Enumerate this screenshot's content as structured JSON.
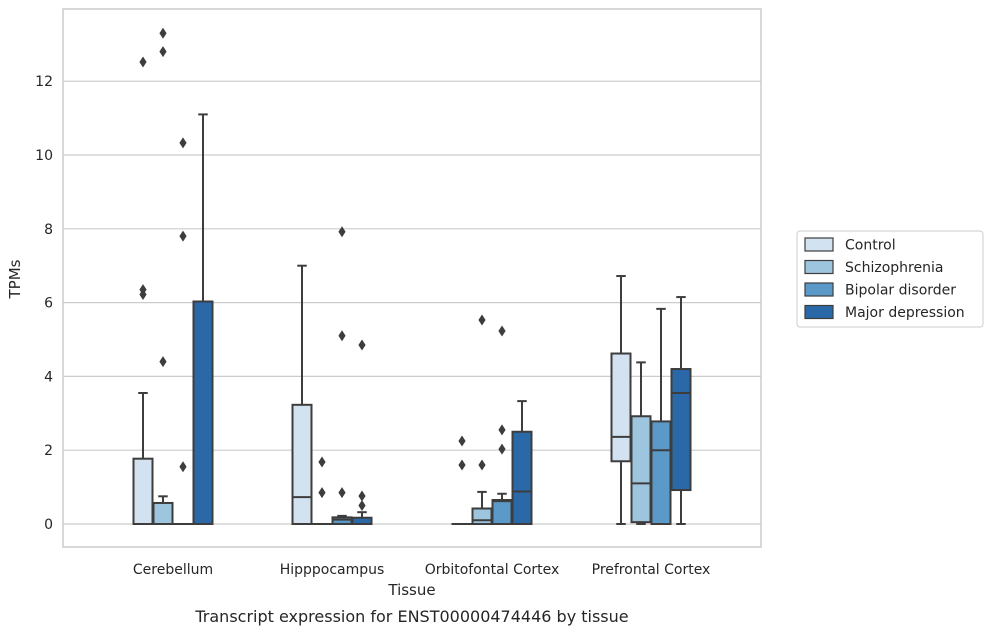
{
  "chart_data": {
    "type": "box",
    "caption": "Transcript expression for ENST00000474446 by tissue",
    "xlabel": "Tissue",
    "ylabel": "TPMs",
    "ylim": [
      -0.65,
      13.9
    ],
    "yticks": [
      0,
      2,
      4,
      6,
      8,
      10,
      12
    ],
    "grid": "horizontal",
    "legend_position": "right",
    "categories": [
      "Cerebellum",
      "Hipppocampus",
      "Orbitofontal Cortex",
      "Prefrontal Cortex"
    ],
    "series": [
      {
        "name": "Control",
        "color": "#d3e2f0",
        "boxes": [
          {
            "min": 0,
            "q1": 0,
            "median": 0,
            "q3": 1.77,
            "max": 3.55,
            "outliers": [
              6.22,
              6.35,
              12.52
            ]
          },
          {
            "min": 0,
            "q1": 0,
            "median": 0.73,
            "q3": 3.23,
            "max": 7.0,
            "outliers": []
          },
          {
            "min": 0,
            "q1": 0,
            "median": 0,
            "q3": 0,
            "max": 0,
            "outliers": [
              1.6,
              2.25
            ]
          },
          {
            "min": 0,
            "q1": 1.7,
            "median": 2.36,
            "q3": 4.62,
            "max": 6.72,
            "outliers": []
          }
        ]
      },
      {
        "name": "Schizophrenia",
        "color": "#9ec5de",
        "boxes": [
          {
            "min": 0,
            "q1": 0,
            "median": 0,
            "q3": 0.57,
            "max": 0.75,
            "outliers": [
              4.4,
              12.8,
              13.3
            ]
          },
          {
            "min": 0,
            "q1": 0,
            "median": 0,
            "q3": 0,
            "max": 0,
            "outliers": [
              0.85,
              1.68
            ]
          },
          {
            "min": 0,
            "q1": 0,
            "median": 0.1,
            "q3": 0.42,
            "max": 0.87,
            "outliers": [
              1.6,
              5.53
            ]
          },
          {
            "min": 0,
            "q1": 0.05,
            "median": 1.1,
            "q3": 2.92,
            "max": 4.38,
            "outliers": []
          }
        ]
      },
      {
        "name": "Bipolar disorder",
        "color": "#5b9ac8",
        "boxes": [
          {
            "min": 0,
            "q1": 0,
            "median": 0,
            "q3": 0,
            "max": 0,
            "outliers": [
              1.55,
              7.8,
              10.33
            ]
          },
          {
            "min": 0,
            "q1": 0,
            "median": 0.12,
            "q3": 0.18,
            "max": 0.22,
            "outliers": [
              0.85,
              5.1,
              7.92
            ]
          },
          {
            "min": 0,
            "q1": 0,
            "median": 0.62,
            "q3": 0.65,
            "max": 0.82,
            "outliers": [
              2.03,
              2.55,
              5.23
            ]
          },
          {
            "min": 0,
            "q1": 0,
            "median": 2.0,
            "q3": 2.78,
            "max": 5.83,
            "outliers": []
          }
        ]
      },
      {
        "name": "Major depression",
        "color": "#2a68a8",
        "boxes": [
          {
            "min": 0,
            "q1": 0,
            "median": 0,
            "q3": 6.03,
            "max": 11.1,
            "outliers": []
          },
          {
            "min": 0,
            "q1": 0,
            "median": 0,
            "q3": 0.17,
            "max": 0.32,
            "outliers": [
              0.5,
              0.76,
              4.85
            ]
          },
          {
            "min": 0,
            "q1": 0,
            "median": 0.88,
            "q3": 2.5,
            "max": 3.33,
            "outliers": []
          },
          {
            "min": 0,
            "q1": 0.92,
            "median": 3.55,
            "q3": 4.2,
            "max": 6.15,
            "outliers": []
          }
        ]
      }
    ]
  }
}
